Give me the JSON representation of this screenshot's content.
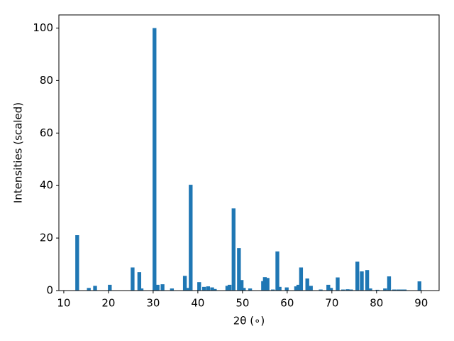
{
  "chart_data": {
    "type": "bar",
    "xlabel": "2θ (∘)",
    "ylabel": "Intensities (scaled)",
    "x": [
      13.0,
      15.6,
      17.0,
      20.3,
      25.4,
      26.9,
      27.4,
      30.3,
      31.0,
      32.1,
      34.2,
      37.1,
      37.7,
      38.4,
      40.3,
      41.4,
      42.3,
      43.2,
      43.8,
      46.6,
      47.1,
      48.0,
      49.2,
      49.8,
      50.3,
      51.7,
      54.6,
      55.0,
      55.6,
      56.8,
      57.8,
      58.3,
      59.9,
      62.0,
      62.5,
      63.1,
      64.5,
      65.3,
      67.5,
      69.2,
      69.8,
      71.3,
      72.5,
      73.5,
      74.3,
      75.7,
      76.7,
      77.9,
      78.6,
      80.2,
      81.9,
      82.8,
      83.9,
      84.8,
      85.6,
      86.3,
      89.6
    ],
    "values": [
      21.1,
      1.0,
      1.8,
      2.2,
      8.8,
      7.0,
      0.8,
      100,
      2.2,
      2.4,
      0.8,
      5.6,
      1.0,
      40.3,
      3.2,
      1.4,
      1.6,
      1.2,
      0.6,
      1.8,
      2.2,
      31.3,
      16.2,
      4.0,
      1.0,
      0.8,
      3.6,
      5.1,
      4.8,
      0.4,
      14.9,
      1.4,
      1.2,
      1.6,
      2.2,
      8.8,
      4.6,
      1.8,
      0.4,
      2.2,
      1.0,
      5.0,
      0.4,
      0.5,
      0.4,
      11.0,
      7.3,
      7.8,
      0.8,
      0.3,
      0.8,
      5.4,
      0.4,
      0.4,
      0.4,
      0.4,
      3.5
    ],
    "color": "#1f77b4",
    "xlim": [
      8.9,
      94.0
    ],
    "xticks": [
      10,
      20,
      30,
      40,
      50,
      60,
      70,
      80,
      90
    ],
    "ylim": [
      0,
      105
    ],
    "yticks": [
      0,
      20,
      40,
      60,
      80,
      100
    ]
  }
}
